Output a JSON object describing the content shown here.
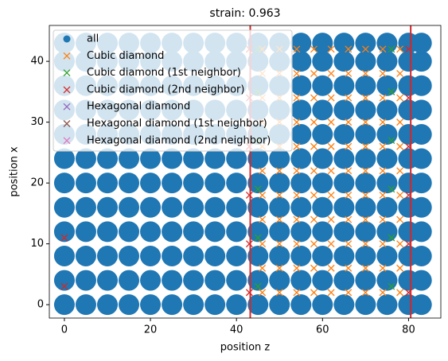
{
  "chart_data": {
    "type": "scatter",
    "title": "strain: 0.963",
    "x_label": "position z",
    "y_label": "position x",
    "xlim": [
      -3.5,
      87.5
    ],
    "ylim": [
      -2.2,
      45.9
    ],
    "xticks": [
      0,
      20,
      40,
      60,
      80
    ],
    "yticks": [
      0,
      10,
      20,
      30,
      40
    ],
    "grid": false,
    "legend": "upper left",
    "vlines": [
      43.2,
      80.5
    ],
    "vline_color": "#d62728",
    "series": [
      {
        "name": "all",
        "marker": "circle",
        "color": "#1f77b4",
        "x": [
          0,
          5,
          10,
          15,
          20,
          25,
          30,
          35,
          40,
          45,
          50,
          55,
          60,
          65,
          70,
          75,
          80,
          83,
          0,
          5,
          10,
          15,
          20,
          25,
          30,
          35,
          40,
          45,
          50,
          55,
          60,
          65,
          70,
          75,
          80,
          83,
          0,
          5,
          10,
          15,
          20,
          25,
          30,
          35,
          40,
          45,
          50,
          55,
          60,
          65,
          70,
          75,
          80,
          83,
          0,
          5,
          10,
          15,
          20,
          25,
          30,
          35,
          40,
          45,
          50,
          55,
          60,
          65,
          70,
          75,
          80,
          83,
          0,
          5,
          10,
          15,
          20,
          25,
          30,
          35,
          40,
          45,
          50,
          55,
          60,
          65,
          70,
          75,
          80,
          83,
          0,
          5,
          10,
          15,
          20,
          25,
          30,
          35,
          40,
          45,
          50,
          55,
          60,
          65,
          70,
          75,
          80,
          83,
          0,
          5,
          10,
          15,
          20,
          25,
          30,
          35,
          40,
          45,
          50,
          55,
          60,
          65,
          70,
          75,
          80,
          83,
          0,
          5,
          10,
          15,
          20,
          25,
          30,
          35,
          40,
          45,
          50,
          55,
          60,
          65,
          70,
          75,
          80,
          83,
          0,
          5,
          10,
          15,
          20,
          25,
          30,
          35,
          40,
          45,
          50,
          55,
          60,
          65,
          70,
          75,
          80,
          83,
          0,
          5,
          10,
          15,
          20,
          25,
          30,
          35,
          40,
          45,
          50,
          55,
          60,
          65,
          70,
          75,
          80,
          83,
          0,
          5,
          10,
          15,
          20,
          25,
          30,
          35,
          40,
          45,
          50,
          55,
          60,
          65,
          70,
          75,
          80,
          83,
          0,
          5,
          10,
          15,
          20,
          25,
          30,
          35,
          40,
          45,
          50,
          55,
          60,
          65,
          70,
          75,
          80,
          83
        ],
        "values": [
          0,
          0,
          0,
          0,
          0,
          0,
          0,
          0,
          0,
          0,
          0,
          0,
          0,
          0,
          0,
          0,
          0,
          0,
          4,
          4,
          4,
          4,
          4,
          4,
          4,
          4,
          4,
          4,
          4,
          4,
          4,
          4,
          4,
          4,
          4,
          4,
          8,
          8,
          8,
          8,
          8,
          8,
          8,
          8,
          8,
          8,
          8,
          8,
          8,
          8,
          8,
          8,
          8,
          8,
          12,
          12,
          12,
          12,
          12,
          12,
          12,
          12,
          12,
          12,
          12,
          12,
          12,
          12,
          12,
          12,
          12,
          12,
          16,
          16,
          16,
          16,
          16,
          16,
          16,
          16,
          16,
          16,
          16,
          16,
          16,
          16,
          16,
          16,
          16,
          16,
          20,
          20,
          20,
          20,
          20,
          20,
          20,
          20,
          20,
          20,
          20,
          20,
          20,
          20,
          20,
          20,
          20,
          20,
          24,
          24,
          24,
          24,
          24,
          24,
          24,
          24,
          24,
          24,
          24,
          24,
          24,
          24,
          24,
          24,
          24,
          24,
          28,
          28,
          28,
          28,
          28,
          28,
          28,
          28,
          28,
          28,
          28,
          28,
          28,
          28,
          28,
          28,
          28,
          28,
          32,
          32,
          32,
          32,
          32,
          32,
          32,
          32,
          32,
          32,
          32,
          32,
          32,
          32,
          32,
          32,
          32,
          32,
          36,
          36,
          36,
          36,
          36,
          36,
          36,
          36,
          36,
          36,
          36,
          36,
          36,
          36,
          36,
          36,
          36,
          36,
          40,
          40,
          40,
          40,
          40,
          40,
          40,
          40,
          40,
          40,
          40,
          40,
          40,
          40,
          40,
          40,
          40,
          40,
          43,
          43,
          43,
          43,
          43,
          43,
          43,
          43,
          43,
          43,
          43,
          43,
          43,
          43,
          43,
          43,
          43,
          43
        ]
      },
      {
        "name": "Cubic diamond",
        "marker": "x",
        "color": "#ff7f0e",
        "x": [
          46,
          50,
          54,
          58,
          62,
          66,
          70,
          74,
          78,
          46,
          50,
          54,
          58,
          62,
          66,
          70,
          74,
          78,
          46,
          50,
          54,
          58,
          62,
          66,
          70,
          74,
          78,
          46,
          50,
          54,
          58,
          62,
          66,
          70,
          74,
          78,
          46,
          50,
          54,
          58,
          62,
          66,
          70,
          74,
          78,
          46,
          50,
          54,
          58,
          62,
          66,
          70,
          74,
          78,
          46,
          50,
          54,
          58,
          62,
          66,
          70,
          74,
          78,
          46,
          50,
          54,
          58,
          62,
          66,
          70,
          74,
          78,
          46,
          50,
          54,
          58,
          62,
          66,
          70,
          74,
          78,
          46,
          50,
          54,
          58,
          62,
          66,
          70,
          74,
          78,
          46,
          50,
          54,
          58,
          62,
          66,
          70,
          74,
          78
        ],
        "values": [
          2,
          2,
          2,
          2,
          2,
          2,
          2,
          2,
          2,
          6,
          6,
          6,
          6,
          6,
          6,
          6,
          6,
          6,
          10,
          10,
          10,
          10,
          10,
          10,
          10,
          10,
          10,
          14,
          14,
          14,
          14,
          14,
          14,
          14,
          14,
          14,
          18,
          18,
          18,
          18,
          18,
          18,
          18,
          18,
          18,
          22,
          22,
          22,
          22,
          22,
          22,
          22,
          22,
          22,
          26,
          26,
          26,
          26,
          26,
          26,
          26,
          26,
          26,
          30,
          30,
          30,
          30,
          30,
          30,
          30,
          30,
          30,
          34,
          34,
          34,
          34,
          34,
          34,
          34,
          34,
          34,
          38,
          38,
          38,
          38,
          38,
          38,
          38,
          38,
          38,
          42,
          42,
          42,
          42,
          42,
          42,
          42,
          42,
          42
        ]
      },
      {
        "name": "Cubic diamond (1st neighbor)",
        "marker": "x",
        "color": "#2ca02c",
        "x": [
          45,
          45,
          45,
          45,
          45,
          45,
          76,
          76,
          76,
          76,
          76,
          76
        ],
        "values": [
          3,
          11,
          19,
          27,
          35,
          42,
          3,
          11,
          19,
          27,
          35,
          42
        ]
      },
      {
        "name": "Cubic diamond (2nd neighbor)",
        "marker": "x",
        "color": "#d62728",
        "x": [
          43,
          43,
          43,
          43,
          43,
          43,
          80,
          80,
          80,
          80,
          80,
          80,
          0,
          0
        ],
        "values": [
          2,
          10,
          18,
          26,
          34,
          42,
          2,
          10,
          18,
          26,
          34,
          42,
          3,
          11
        ]
      },
      {
        "name": "Hexagonal diamond",
        "marker": "x",
        "color": "#9467bd",
        "x": [],
        "values": []
      },
      {
        "name": "Hexagonal diamond (1st neighbor)",
        "marker": "x",
        "color": "#8c564b",
        "x": [],
        "values": []
      },
      {
        "name": "Hexagonal diamond (2nd neighbor)",
        "marker": "x",
        "color": "#e377c2",
        "x": [],
        "values": []
      }
    ]
  }
}
